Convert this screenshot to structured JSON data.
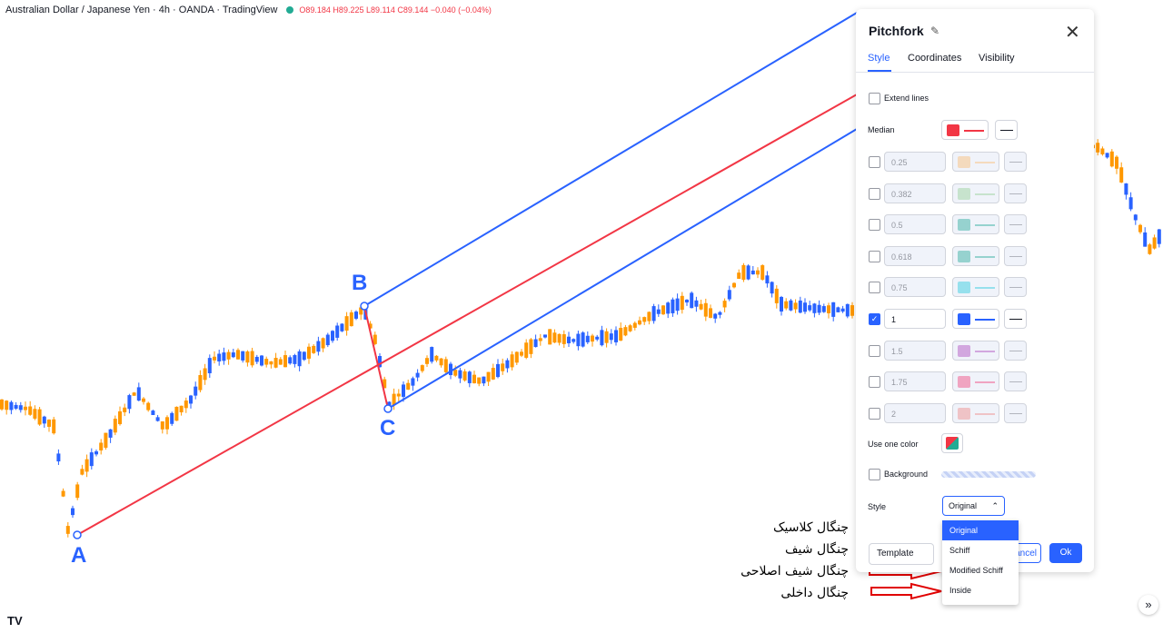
{
  "header": {
    "symbol": "Australian Dollar / Japanese Yen · 4h · OANDA · TradingView",
    "ohlc": "O89.184 H89.225 L89.114 C89.144 −0.040 (−0.04%)"
  },
  "points": {
    "a": "A",
    "b": "B",
    "c": "C"
  },
  "colors": {
    "up": "#2962ff",
    "down": "#ff9800",
    "median": "#f23645",
    "fork": "#2962ff"
  },
  "footer": {
    "logo": "TV",
    "expand_icon": "»"
  },
  "dialog": {
    "title": "Pitchfork",
    "tabs": [
      "Style",
      "Coordinates",
      "Visibility"
    ],
    "extend_lines": "Extend lines",
    "median_label": "Median",
    "median_color": "#f23645",
    "levels": [
      {
        "value": "0.25",
        "color": "#f8c48a",
        "enabled": false
      },
      {
        "value": "0.382",
        "color": "#a5d6a7",
        "enabled": false
      },
      {
        "value": "0.5",
        "color": "#4db6ac",
        "enabled": false
      },
      {
        "value": "0.618",
        "color": "#4db6ac",
        "enabled": false
      },
      {
        "value": "0.75",
        "color": "#4dd0e1",
        "enabled": false
      },
      {
        "value": "1",
        "color": "#2962ff",
        "enabled": true
      },
      {
        "value": "1.5",
        "color": "#ba68c8",
        "enabled": false
      },
      {
        "value": "1.75",
        "color": "#f06292",
        "enabled": false
      },
      {
        "value": "2",
        "color": "#ef9a9a",
        "enabled": false
      }
    ],
    "use_one_color": "Use one color",
    "background": "Background",
    "style_label": "Style",
    "style_value": "Original",
    "template": "Template",
    "cancel": "Cancel",
    "ok": "Ok"
  },
  "dropdown": {
    "options": [
      "Original",
      "Schiff",
      "Modified Schiff",
      "Inside"
    ],
    "selected": "Original"
  },
  "annotations": [
    "چنگال کلاسیک",
    "چنگال شیف",
    "چنگال شیف اصلاحی",
    "چنگال داخلی"
  ]
}
